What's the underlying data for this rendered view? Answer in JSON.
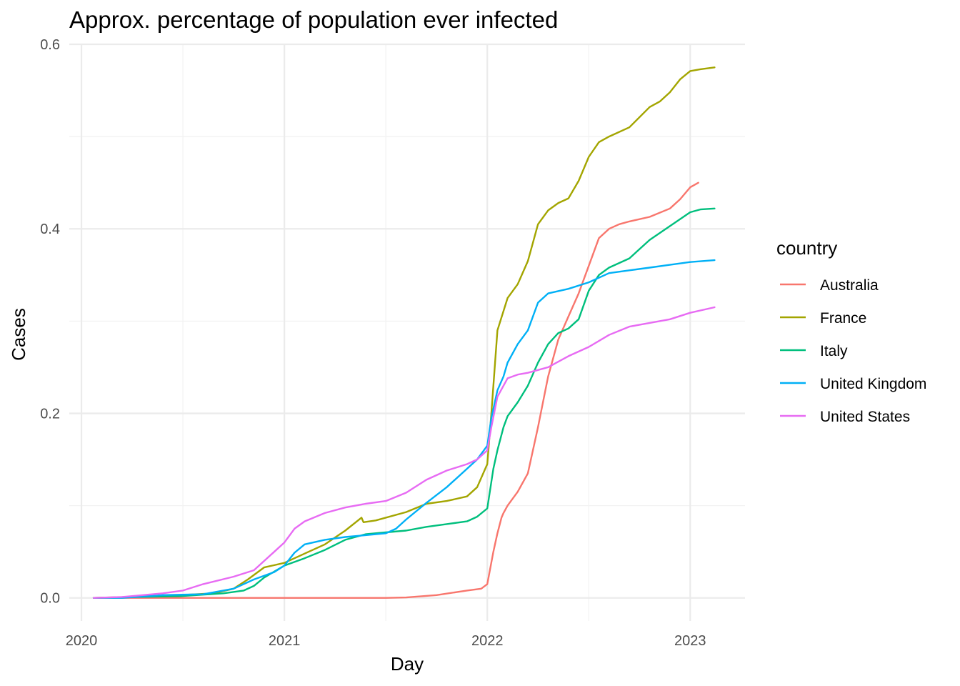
{
  "chart_data": {
    "type": "line",
    "title": "Approx. percentage of population ever infected",
    "xlabel": "Day",
    "ylabel": "Cases",
    "x_ticks": [
      "2020",
      "2021",
      "2022",
      "2023"
    ],
    "x_tick_values": [
      2020.0,
      2021.0,
      2022.0,
      2023.0
    ],
    "xlim": [
      2019.94,
      2023.27
    ],
    "y_ticks": [
      "0.0",
      "0.2",
      "0.4",
      "0.6"
    ],
    "y_tick_values": [
      0.0,
      0.2,
      0.4,
      0.6
    ],
    "ylim": [
      -0.025,
      0.6
    ],
    "grid": true,
    "legend": {
      "title": "country",
      "position": "right"
    },
    "series": [
      {
        "name": "Australia",
        "color": "#F8766D",
        "x": [
          2020.06,
          2020.5,
          2021.0,
          2021.5,
          2021.6,
          2021.75,
          2021.9,
          2021.97,
          2022.0,
          2022.03,
          2022.05,
          2022.07,
          2022.08,
          2022.1,
          2022.15,
          2022.2,
          2022.25,
          2022.3,
          2022.35,
          2022.4,
          2022.45,
          2022.5,
          2022.55,
          2022.6,
          2022.65,
          2022.7,
          2022.8,
          2022.9,
          2022.95,
          2023.0,
          2023.04
        ],
        "values": [
          0.0,
          0.0,
          0.0,
          0.0,
          0.0005,
          0.003,
          0.008,
          0.01,
          0.015,
          0.05,
          0.07,
          0.087,
          0.092,
          0.1,
          0.115,
          0.135,
          0.185,
          0.24,
          0.28,
          0.305,
          0.33,
          0.36,
          0.39,
          0.4,
          0.405,
          0.408,
          0.413,
          0.422,
          0.432,
          0.445,
          0.45
        ]
      },
      {
        "name": "France",
        "color": "#A3A500",
        "x": [
          2020.06,
          2020.4,
          2020.65,
          2020.75,
          2020.82,
          2020.9,
          2021.0,
          2021.1,
          2021.2,
          2021.3,
          2021.38,
          2021.39,
          2021.45,
          2021.6,
          2021.7,
          2021.8,
          2021.9,
          2021.95,
          2022.0,
          2022.02,
          2022.05,
          2022.1,
          2022.15,
          2022.2,
          2022.25,
          2022.3,
          2022.35,
          2022.4,
          2022.45,
          2022.5,
          2022.55,
          2022.6,
          2022.7,
          2022.8,
          2022.85,
          2022.9,
          2022.95,
          2023.0,
          2023.05,
          2023.12
        ],
        "values": [
          0.0,
          0.002,
          0.005,
          0.01,
          0.02,
          0.033,
          0.038,
          0.048,
          0.058,
          0.073,
          0.087,
          0.082,
          0.084,
          0.093,
          0.102,
          0.105,
          0.11,
          0.12,
          0.145,
          0.2,
          0.29,
          0.325,
          0.34,
          0.365,
          0.405,
          0.42,
          0.428,
          0.433,
          0.452,
          0.478,
          0.494,
          0.5,
          0.51,
          0.532,
          0.538,
          0.548,
          0.562,
          0.571,
          0.573,
          0.575
        ]
      },
      {
        "name": "Italy",
        "color": "#00BF7D",
        "x": [
          2020.06,
          2020.5,
          2020.7,
          2020.8,
          2020.85,
          2020.9,
          2021.0,
          2021.1,
          2021.2,
          2021.3,
          2021.4,
          2021.5,
          2021.6,
          2021.7,
          2021.8,
          2021.9,
          2021.95,
          2022.0,
          2022.03,
          2022.05,
          2022.08,
          2022.1,
          2022.15,
          2022.2,
          2022.25,
          2022.3,
          2022.35,
          2022.4,
          2022.45,
          2022.5,
          2022.55,
          2022.6,
          2022.7,
          2022.8,
          2022.9,
          2023.0,
          2023.05,
          2023.12
        ],
        "values": [
          0.0,
          0.002,
          0.005,
          0.008,
          0.013,
          0.022,
          0.035,
          0.043,
          0.052,
          0.063,
          0.069,
          0.071,
          0.073,
          0.077,
          0.08,
          0.083,
          0.088,
          0.097,
          0.14,
          0.16,
          0.185,
          0.197,
          0.212,
          0.23,
          0.255,
          0.275,
          0.287,
          0.292,
          0.302,
          0.333,
          0.35,
          0.358,
          0.368,
          0.388,
          0.403,
          0.418,
          0.421,
          0.422
        ]
      },
      {
        "name": "United Kingdom",
        "color": "#00B0F6",
        "x": [
          2020.06,
          2020.2,
          2020.4,
          2020.6,
          2020.75,
          2020.85,
          2020.95,
          2021.0,
          2021.05,
          2021.1,
          2021.2,
          2021.3,
          2021.4,
          2021.5,
          2021.55,
          2021.6,
          2021.7,
          2021.8,
          2021.9,
          2021.95,
          2022.0,
          2022.02,
          2022.05,
          2022.08,
          2022.1,
          2022.15,
          2022.2,
          2022.25,
          2022.3,
          2022.4,
          2022.5,
          2022.6,
          2022.7,
          2022.8,
          2022.9,
          2023.0,
          2023.12
        ],
        "values": [
          0.0,
          0.0,
          0.003,
          0.004,
          0.01,
          0.02,
          0.028,
          0.035,
          0.049,
          0.058,
          0.063,
          0.066,
          0.068,
          0.07,
          0.075,
          0.085,
          0.103,
          0.12,
          0.14,
          0.15,
          0.165,
          0.195,
          0.225,
          0.24,
          0.255,
          0.275,
          0.29,
          0.32,
          0.33,
          0.335,
          0.342,
          0.352,
          0.355,
          0.358,
          0.361,
          0.364,
          0.366
        ]
      },
      {
        "name": "United States",
        "color": "#E76BF3",
        "x": [
          2020.06,
          2020.2,
          2020.4,
          2020.5,
          2020.6,
          2020.75,
          2020.85,
          2020.95,
          2021.0,
          2021.05,
          2021.1,
          2021.2,
          2021.3,
          2021.4,
          2021.5,
          2021.6,
          2021.7,
          2021.8,
          2021.9,
          2021.95,
          2022.0,
          2022.02,
          2022.05,
          2022.1,
          2022.15,
          2022.2,
          2022.3,
          2022.4,
          2022.5,
          2022.6,
          2022.7,
          2022.8,
          2022.9,
          2023.0,
          2023.12
        ],
        "values": [
          0.0,
          0.001,
          0.005,
          0.008,
          0.015,
          0.023,
          0.03,
          0.05,
          0.06,
          0.075,
          0.083,
          0.092,
          0.098,
          0.102,
          0.105,
          0.114,
          0.128,
          0.138,
          0.145,
          0.15,
          0.16,
          0.185,
          0.218,
          0.238,
          0.242,
          0.244,
          0.25,
          0.262,
          0.272,
          0.285,
          0.294,
          0.298,
          0.302,
          0.309,
          0.315
        ]
      }
    ]
  }
}
